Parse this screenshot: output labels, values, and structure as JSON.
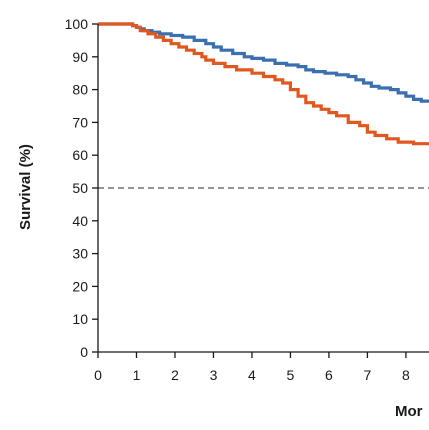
{
  "chart_data": {
    "type": "line",
    "ylabel": "Survival (%)",
    "xlabel": "Mor",
    "xlim": [
      0,
      8.6
    ],
    "ylim": [
      0,
      100
    ],
    "x_ticks": [
      0,
      1,
      2,
      3,
      4,
      5,
      6,
      7,
      8
    ],
    "y_ticks": [
      0,
      10,
      20,
      30,
      40,
      50,
      60,
      70,
      80,
      90,
      100
    ],
    "grid": false,
    "reference_line": {
      "y": 50,
      "style": "dashed"
    },
    "series": [
      {
        "color": "#3a6fb0",
        "step": true,
        "x": [
          0,
          0.9,
          1.0,
          1.1,
          1.2,
          1.4,
          1.6,
          1.9,
          2.2,
          2.5,
          2.8,
          3.0,
          3.2,
          3.5,
          3.8,
          4.0,
          4.3,
          4.6,
          4.9,
          5.2,
          5.4,
          5.6,
          5.9,
          6.2,
          6.5,
          6.7,
          6.9,
          7.1,
          7.3,
          7.6,
          7.8,
          8.0,
          8.2,
          8.4,
          8.6
        ],
        "y": [
          100,
          99.5,
          99,
          98.5,
          98,
          97.5,
          97,
          96.5,
          96,
          95,
          94,
          93,
          92,
          91,
          90,
          89.5,
          89,
          88,
          87.5,
          87,
          86,
          85.5,
          85,
          84.5,
          84,
          83,
          82,
          81,
          80.5,
          80,
          79,
          78,
          77,
          76.5,
          76
        ]
      },
      {
        "color": "#e0581f",
        "step": true,
        "x": [
          0,
          0.9,
          1.0,
          1.1,
          1.3,
          1.5,
          1.7,
          1.9,
          2.1,
          2.3,
          2.5,
          2.7,
          2.8,
          3.0,
          3.3,
          3.6,
          4.0,
          4.3,
          4.6,
          4.8,
          5.0,
          5.2,
          5.4,
          5.6,
          5.8,
          6.0,
          6.2,
          6.5,
          6.8,
          7.0,
          7.2,
          7.5,
          7.8,
          8.2,
          8.6
        ],
        "y": [
          100,
          99.5,
          99,
          98,
          97,
          96,
          95,
          94,
          93,
          92,
          91,
          90,
          89,
          88,
          87,
          86,
          85,
          84,
          83,
          82,
          80,
          78,
          76,
          75,
          74,
          73,
          72,
          70,
          69,
          67,
          66,
          65,
          64,
          63.5,
          63
        ]
      }
    ]
  }
}
